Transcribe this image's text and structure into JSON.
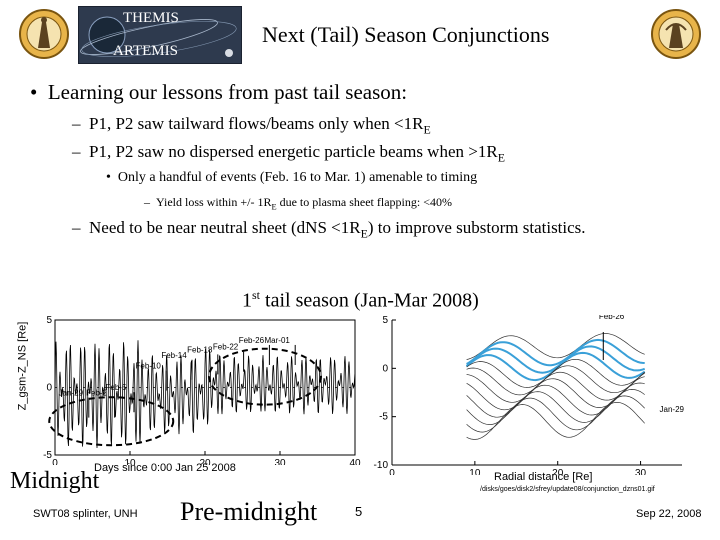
{
  "header": {
    "banner_top": "THEMIS",
    "banner_bottom": "ARTEMIS",
    "title": "Next (Tail) Season Conjunctions"
  },
  "bullets": {
    "main": "Learning our lessons from past tail season:",
    "sub1_pre": "P1, P2 saw tailward flows/beams only when <1R",
    "sub1_sub": "E",
    "sub2_pre": "P1, P2 saw no dispersed energetic particle beams when >1R",
    "sub2_sub": "E",
    "subsub1": "Only a handful of events (Feb. 16 to Mar. 1) amenable to timing",
    "subsubsub1_pre": "Yield loss within +/-  1R",
    "subsubsub1_sub": "E",
    "subsubsub1_post": " due to plasma sheet flapping: <40%",
    "sub3_pre": "Need to be near neutral sheet (dNS <1R",
    "sub3_sub": "E",
    "sub3_post": ") to improve substorm statistics."
  },
  "season_title": {
    "pre": "1",
    "sup": "st",
    "post": " tail season (Jan-Mar 2008)"
  },
  "chart_data": {
    "type": "line",
    "ylabel": "Z_gsm-Z_NS [Re]",
    "xlabel": "Days since 0:00 Jan 25 2008",
    "xlim": [
      0,
      40
    ],
    "ylim": [
      -5,
      5
    ],
    "xticks": [
      "0",
      "10",
      "20",
      "30",
      "40"
    ],
    "yticks": [
      "5",
      "0",
      "-5"
    ],
    "annotations": [
      "Jan-29",
      "Feb-2",
      "Feb-5",
      "Feb-10",
      "Feb-14",
      "Feb-18",
      "Feb-22",
      "Feb-26",
      "Mar-01"
    ]
  },
  "orbit_plot": {
    "xlabel": "Radial distance [Re]",
    "xticks": [
      "0",
      "10",
      "20",
      "30"
    ],
    "yticks": [
      "5",
      "0",
      "-5",
      "-10"
    ],
    "label_top": "Feb-26",
    "label_bottom": "Jan-29",
    "path": "/disks/goes/disk2/sfrey/update08/conjunction_dzns01.gif"
  },
  "labels": {
    "midnight": "Midnight",
    "premidnight": "Pre-midnight"
  },
  "footer": {
    "left": "SWT08 splinter, UNH",
    "page": "5",
    "right": "Sep 22, 2008"
  }
}
